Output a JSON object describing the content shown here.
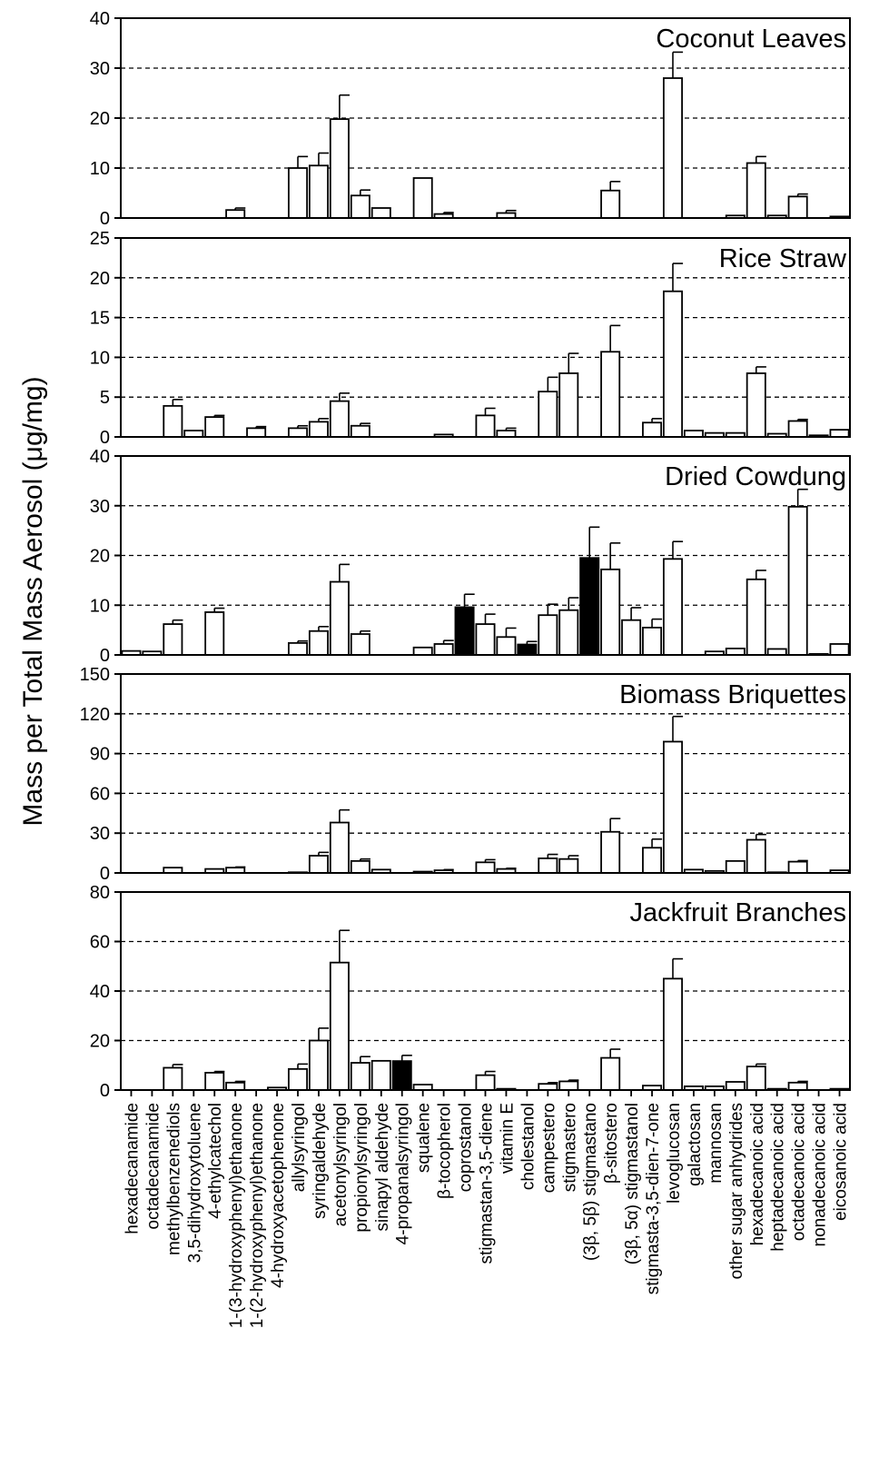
{
  "ylabel": "Mass per Total Mass Aerosol (μg/mg)",
  "colors": {
    "open_bar": "#ffffff",
    "filled_bar": "#000000",
    "grid": "#000000"
  },
  "categories": [
    "hexadecanamide",
    "octadecanamide",
    "methylbenzenediols",
    "3,5-dihydroxytoluene",
    "4-ethylcatechol",
    "1-(3-hydroxyphenyl)ethanone",
    "1-(2-hydroxyphenyl)ethanone",
    "4-hydroxyacetophenone",
    "allylsyringol",
    "syringaldehyde",
    "acetonylsyringol",
    "propionylsyringol",
    "sinapyl aldehyde",
    "4-propanalsyringol",
    "squalene",
    "β-tocopherol",
    "coprostanol",
    "stigmastan-3,5-diene",
    "vitamin E",
    "cholestanol",
    "campestero",
    "stigmastero",
    "(3β, 5β) stigmastano",
    "β-sitostero",
    "(3β, 5α) stigmastanol",
    "stigmasta-3,5-dien-7-one",
    "levoglucosan",
    "galactosan",
    "mannosan",
    "other sugar anhydrides",
    "hexadecanoic acid",
    "heptadecanoic acid",
    "octadecanoic acid",
    "nonadecanoic acid",
    "eicosanoic acid"
  ],
  "chart_data": [
    {
      "type": "bar",
      "title": "Coconut Leaves",
      "ylim": [
        0,
        40
      ],
      "yticks": [
        "0",
        "10",
        "20",
        "30",
        "40"
      ],
      "grid": true,
      "values": [
        0,
        0,
        0,
        0,
        0,
        1.6,
        0,
        0,
        10,
        10.5,
        19.8,
        4.5,
        2,
        0,
        8,
        0.8,
        0,
        0,
        1,
        0,
        0,
        0,
        0,
        5.5,
        0,
        0,
        28,
        0,
        0,
        0.5,
        11,
        0.5,
        4.3,
        0,
        0.3
      ],
      "errors": [
        0,
        0,
        0,
        0,
        0,
        0.4,
        0,
        0,
        2.3,
        2.5,
        4.8,
        1.1,
        0,
        0,
        0,
        0.3,
        0,
        0,
        0.5,
        0,
        0,
        0,
        0,
        1.8,
        0,
        0,
        5.2,
        0,
        0,
        0,
        1.3,
        0,
        0.5,
        0,
        0
      ],
      "filled": []
    },
    {
      "type": "bar",
      "title": "Rice Straw",
      "ylim": [
        0,
        25
      ],
      "yticks": [
        "0",
        "5",
        "10",
        "15",
        "20",
        "25"
      ],
      "grid": true,
      "values": [
        0,
        0,
        3.9,
        0.8,
        2.5,
        0,
        1.1,
        0,
        1.1,
        1.9,
        4.5,
        1.4,
        0,
        0,
        0,
        0.3,
        0,
        2.7,
        0.8,
        0,
        5.7,
        8,
        0,
        10.7,
        0,
        1.8,
        18.3,
        0.8,
        0.5,
        0.5,
        8,
        0.4,
        2,
        0.2,
        0.9
      ],
      "errors": [
        0,
        0,
        0.8,
        0,
        0.2,
        0,
        0.2,
        0,
        0.3,
        0.4,
        1,
        0.3,
        0,
        0,
        0,
        0,
        0,
        0.9,
        0.3,
        0,
        1.8,
        2.5,
        0,
        3.3,
        0,
        0.5,
        3.5,
        0,
        0,
        0,
        0.8,
        0,
        0.2,
        0,
        0
      ],
      "filled": []
    },
    {
      "type": "bar",
      "title": "Dried Cowdung",
      "ylim": [
        0,
        40
      ],
      "yticks": [
        "0",
        "10",
        "20",
        "30",
        "40"
      ],
      "grid": true,
      "values": [
        0.8,
        0.7,
        6.2,
        0,
        8.6,
        0,
        0,
        0,
        2.4,
        4.8,
        14.7,
        4.2,
        0,
        0,
        1.5,
        2.2,
        9.6,
        6.2,
        3.6,
        2.1,
        8,
        9,
        19.5,
        17.2,
        7,
        5.5,
        19.3,
        0,
        0.7,
        1.3,
        15.2,
        1.2,
        29.8,
        0.2,
        2.2
      ],
      "errors": [
        0,
        0,
        0.8,
        0,
        0.8,
        0,
        0,
        0,
        0.4,
        0.9,
        3.5,
        0.6,
        0,
        0,
        0,
        0.7,
        2.6,
        2,
        1.8,
        0.6,
        2.2,
        2.5,
        6.2,
        5.3,
        2.5,
        1.7,
        3.5,
        0,
        0,
        0,
        1.8,
        0,
        3.5,
        0,
        0
      ],
      "filled": [
        16,
        19,
        22
      ]
    },
    {
      "type": "bar",
      "title": "Biomass Briquettes",
      "ylim": [
        0,
        150
      ],
      "yticks": [
        "0",
        "30",
        "60",
        "90",
        "120",
        "150"
      ],
      "grid": true,
      "values": [
        0,
        0,
        4,
        0,
        3,
        4,
        0,
        0,
        0.5,
        13,
        38,
        9,
        2.5,
        0,
        1,
        2,
        0,
        8,
        3,
        0,
        11,
        10.5,
        0,
        31,
        0,
        19,
        99,
        2.5,
        1.5,
        9,
        25,
        0.5,
        8.5,
        0,
        2
      ],
      "errors": [
        0,
        0,
        0,
        0,
        0,
        0.5,
        0,
        0,
        0,
        2.5,
        9.5,
        1.5,
        0,
        0,
        0,
        0.5,
        0,
        2,
        0.5,
        0,
        3,
        2.5,
        0,
        10,
        0,
        6.5,
        19,
        0,
        0,
        0,
        4,
        0,
        0.8,
        0,
        0
      ],
      "filled": []
    },
    {
      "type": "bar",
      "title": "Jackfruit Branches",
      "ylim": [
        0,
        80
      ],
      "yticks": [
        "0",
        "20",
        "40",
        "60",
        "80"
      ],
      "grid": true,
      "values": [
        0,
        0,
        9,
        0,
        7,
        3,
        0,
        1,
        8.5,
        20,
        51.5,
        11,
        11.8,
        11.7,
        2.2,
        0,
        0,
        6,
        0.5,
        0,
        2.5,
        3.5,
        0,
        13,
        0,
        1.8,
        45,
        1.5,
        1.5,
        3.3,
        9.5,
        0.5,
        3,
        0,
        0.5
      ],
      "errors": [
        0,
        0,
        1.3,
        0,
        0.5,
        0.5,
        0,
        0,
        2,
        5,
        13,
        2.5,
        0,
        2.3,
        0,
        0,
        0,
        1.5,
        0,
        0,
        0.5,
        0.5,
        0,
        3.5,
        0,
        0,
        8,
        0,
        0,
        0,
        1,
        0,
        0.5,
        0,
        0
      ],
      "filled": [
        13
      ]
    }
  ]
}
